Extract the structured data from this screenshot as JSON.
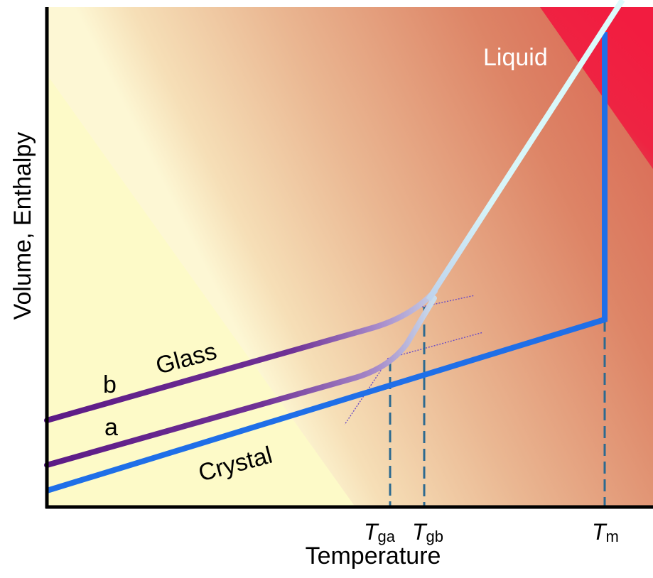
{
  "diagram": {
    "x_axis_label": "Temperature",
    "y_axis_label": "Volume, Enthalpy",
    "regions": {
      "liquid": "Liquid",
      "glass": "Glass",
      "crystal": "Crystal"
    },
    "curves": {
      "b": "b",
      "a": "a"
    },
    "ticks": [
      {
        "main": "T",
        "sub": "ga"
      },
      {
        "main": "T",
        "sub": "gb"
      },
      {
        "main": "T",
        "sub": "m"
      }
    ],
    "colors": {
      "crystal_line": "#1f6fe8",
      "glass_line": "#5c1a86",
      "liquid_line": "#d8fbfb",
      "guide_dash": "#2d6a90",
      "background_yellow": "#fdfac8",
      "background_orange": "#e09070",
      "liquid_zone": "#f01e42"
    }
  }
}
